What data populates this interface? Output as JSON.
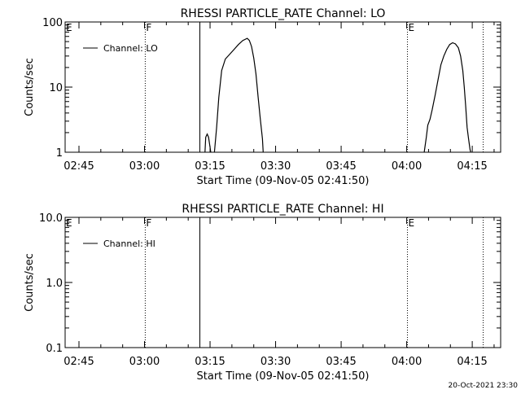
{
  "footer": {
    "timestamp": "20-Oct-2021 23:30"
  },
  "chart_data": [
    {
      "type": "line",
      "title": "RHESSI PARTICLE_RATE Channel: LO",
      "xlabel": "Start Time (09-Nov-05 02:41:50)",
      "ylabel": "Counts/sec",
      "y_scale": "log",
      "ylim": [
        1,
        100
      ],
      "xlim": [
        "02:41:50",
        "04:21:30"
      ],
      "x_ticks": [
        "02:45",
        "03:00",
        "03:15",
        "03:30",
        "03:45",
        "04:00",
        "04:15"
      ],
      "y_ticks": [
        {
          "value": 1,
          "label": "1"
        },
        {
          "value": 10,
          "label": "10"
        },
        {
          "value": 100,
          "label": "100"
        }
      ],
      "legend": {
        "position": "top-left",
        "label": "Channel: LO"
      },
      "markers": [
        {
          "time": "03:00:10",
          "label": "F",
          "style": "dotted"
        },
        {
          "time": "03:12:40",
          "label": "",
          "style": "solid"
        },
        {
          "time": "04:00:10",
          "label": "E",
          "style": "dotted"
        },
        {
          "time": "04:17:30",
          "label": "",
          "style": "dotted"
        }
      ],
      "axis_left_label": "E",
      "series": [
        {
          "name": "Channel: LO",
          "segments": [
            [
              [
                "03:13:50",
                1
              ],
              [
                "03:14:00",
                1.7
              ],
              [
                "03:14:20",
                1.9
              ],
              [
                "03:14:40",
                1.7
              ],
              [
                "03:15:00",
                1.2
              ],
              [
                "03:15:10",
                1
              ]
            ],
            [
              [
                "03:16:00",
                1
              ],
              [
                "03:16:30",
                2.4
              ],
              [
                "03:17:00",
                7
              ],
              [
                "03:17:40",
                18
              ],
              [
                "03:18:30",
                27
              ],
              [
                "03:19:30",
                32
              ],
              [
                "03:20:30",
                38
              ],
              [
                "03:21:30",
                45
              ],
              [
                "03:22:30",
                52
              ],
              [
                "03:23:30",
                56
              ],
              [
                "03:24:00",
                52
              ],
              [
                "03:24:30",
                42
              ],
              [
                "03:25:00",
                28
              ],
              [
                "03:25:30",
                16
              ],
              [
                "03:26:00",
                7
              ],
              [
                "03:26:30",
                3.2
              ],
              [
                "03:27:00",
                1.6
              ],
              [
                "03:27:10",
                1
              ]
            ],
            [
              [
                "04:04:00",
                1
              ],
              [
                "04:04:30",
                1.7
              ],
              [
                "04:04:50",
                2.6
              ],
              [
                "04:05:20",
                3.2
              ],
              [
                "04:05:50",
                4.5
              ],
              [
                "04:06:30",
                7.5
              ],
              [
                "04:07:10",
                13
              ],
              [
                "04:07:50",
                22
              ],
              [
                "04:08:30",
                30
              ],
              [
                "04:09:10",
                38
              ],
              [
                "04:09:50",
                45
              ],
              [
                "04:10:30",
                48
              ],
              [
                "04:11:10",
                46
              ],
              [
                "04:11:50",
                40
              ],
              [
                "04:12:20",
                30
              ],
              [
                "04:12:50",
                18
              ],
              [
                "04:13:10",
                10
              ],
              [
                "04:13:30",
                5
              ],
              [
                "04:13:50",
                2.4
              ],
              [
                "04:14:10",
                1.6
              ],
              [
                "04:14:30",
                1.1
              ],
              [
                "04:14:40",
                1
              ]
            ]
          ]
        }
      ]
    },
    {
      "type": "line",
      "title": "RHESSI PARTICLE_RATE Channel: HI",
      "xlabel": "Start Time (09-Nov-05 02:41:50)",
      "ylabel": "Counts/sec",
      "y_scale": "log",
      "ylim": [
        0.1,
        10
      ],
      "xlim": [
        "02:41:50",
        "04:21:30"
      ],
      "x_ticks": [
        "02:45",
        "03:00",
        "03:15",
        "03:30",
        "03:45",
        "04:00",
        "04:15"
      ],
      "y_ticks": [
        {
          "value": 0.1,
          "label": "0.1"
        },
        {
          "value": 1,
          "label": "1.0"
        },
        {
          "value": 10,
          "label": "10.0"
        }
      ],
      "legend": {
        "position": "top-left",
        "label": "Channel: HI"
      },
      "markers": [
        {
          "time": "03:00:10",
          "label": "F",
          "style": "dotted"
        },
        {
          "time": "03:12:40",
          "label": "",
          "style": "solid"
        },
        {
          "time": "04:00:10",
          "label": "E",
          "style": "dotted"
        },
        {
          "time": "04:17:30",
          "label": "",
          "style": "dotted"
        }
      ],
      "axis_left_label": "E",
      "series": [
        {
          "name": "Channel: HI",
          "segments": []
        }
      ]
    }
  ]
}
